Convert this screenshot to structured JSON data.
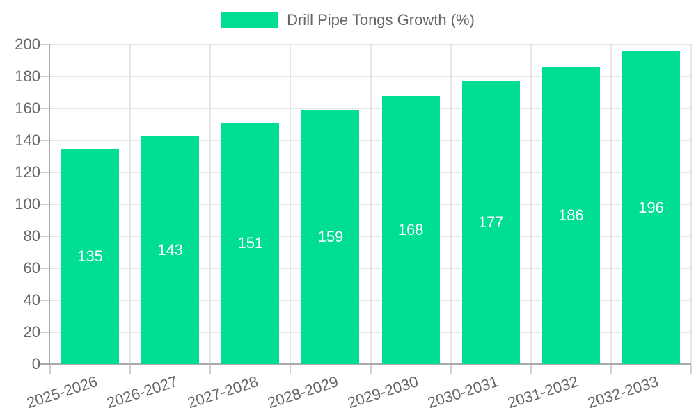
{
  "legend": {
    "label": "Drill Pipe Tongs Growth (%)"
  },
  "chart_data": {
    "type": "bar",
    "title": "Drill Pipe Tongs Growth (%)",
    "categories": [
      "2025-2026",
      "2026-2027",
      "2027-2028",
      "2028-2029",
      "2029-2030",
      "2030-2031",
      "2031-2032",
      "2032-2033"
    ],
    "series": [
      {
        "name": "Drill Pipe Tongs Growth (%)",
        "color": "#00DE92",
        "values": [
          135,
          143,
          151,
          159,
          168,
          177,
          186,
          196
        ]
      }
    ],
    "value_labels": [
      135,
      143,
      151,
      159,
      168,
      177,
      186,
      196
    ],
    "xlabel": "",
    "ylabel": "",
    "ylim": [
      0,
      200
    ],
    "ytick_step": 20,
    "ytick_labels": [
      "0",
      "20",
      "40",
      "60",
      "80",
      "100",
      "120",
      "140",
      "160",
      "180",
      "200"
    ],
    "grid": true,
    "legend_position": "top",
    "colors": {
      "bar": "#00DE92",
      "axis_text": "#666666",
      "value_label_text": "#ffffff",
      "grid_line": "#e6e6e6",
      "tick_mark": "#cfcfcf",
      "axis_line": "#aaaaaa",
      "background": "#ffffff"
    }
  }
}
